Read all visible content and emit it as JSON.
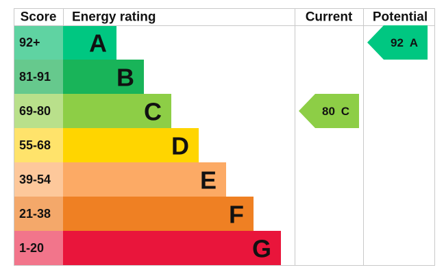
{
  "headers": {
    "score": "Score",
    "rating": "Energy rating",
    "current": "Current",
    "potential": "Potential"
  },
  "bands": [
    {
      "score": "92+",
      "letter": "A",
      "color": "#00c781",
      "score_color": "#5fd3a2"
    },
    {
      "score": "81-91",
      "letter": "B",
      "color": "#19b459",
      "score_color": "#66c98d"
    },
    {
      "score": "69-80",
      "letter": "C",
      "color": "#8dce46",
      "score_color": "#b9e08b"
    },
    {
      "score": "55-68",
      "letter": "D",
      "color": "#ffd500",
      "score_color": "#ffe36b"
    },
    {
      "score": "39-54",
      "letter": "E",
      "color": "#fcaa65",
      "score_color": "#fdc89b"
    },
    {
      "score": "21-38",
      "letter": "F",
      "color": "#ef8023",
      "score_color": "#f4a86a"
    },
    {
      "score": "1-20",
      "letter": "G",
      "color": "#e9153b",
      "score_color": "#f2758b"
    }
  ],
  "current": {
    "score": "80",
    "letter": "C"
  },
  "potential": {
    "score": "92",
    "letter": "A"
  }
}
